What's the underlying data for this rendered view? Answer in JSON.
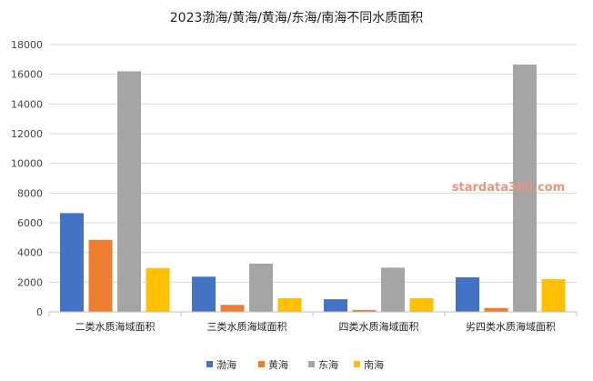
{
  "chart_data": {
    "type": "bar",
    "title": "2023渤海/黄海/黄海/东海/南海不同水质面积",
    "categories": [
      "二类水质海域面积",
      "三类水质海域面积",
      "四类水质海域面积",
      "劣四类水质海域面积"
    ],
    "series": [
      {
        "name": "渤海",
        "color": "#4472C4",
        "values": [
          6650,
          2370,
          850,
          2330
        ]
      },
      {
        "name": "黄海",
        "color": "#ED7D31",
        "values": [
          4850,
          470,
          130,
          260
        ]
      },
      {
        "name": "东海",
        "color": "#A5A5A5",
        "values": [
          16200,
          3250,
          2980,
          16650
        ]
      },
      {
        "name": "南海",
        "color": "#FFC000",
        "values": [
          2950,
          920,
          920,
          2200
        ]
      }
    ],
    "ylim": [
      0,
      18000
    ],
    "yticks": [
      0,
      2000,
      4000,
      6000,
      8000,
      10000,
      12000,
      14000,
      16000,
      18000
    ],
    "grid": true,
    "legend_position": "bottom",
    "watermark": {
      "text": "stardata360.com",
      "color": "#E9967A"
    }
  }
}
